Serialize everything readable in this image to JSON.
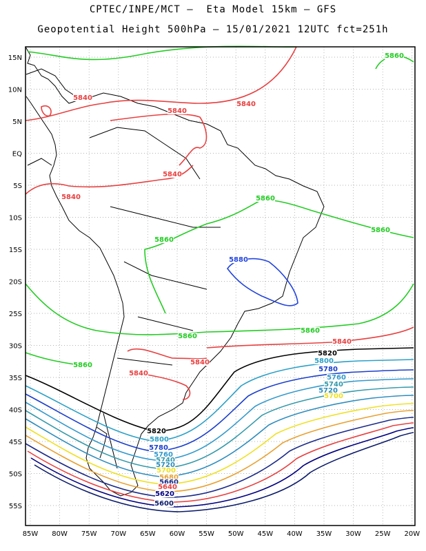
{
  "title": {
    "line1": "CPTEC/INPE/MCT –  Eta Model 15km – GFS",
    "line2": "Geopotential Height 500hPa – 15/01/2021 12UTC fct=251h"
  },
  "axes": {
    "lat_labels": [
      "15N",
      "10N",
      "5N",
      "EQ",
      "5S",
      "10S",
      "15S",
      "20S",
      "25S",
      "30S",
      "35S",
      "40S",
      "45S",
      "50S",
      "55S"
    ],
    "lon_labels": [
      "85W",
      "80W",
      "75W",
      "70W",
      "65W",
      "60W",
      "55W",
      "50W",
      "45W",
      "40W",
      "35W",
      "30W",
      "25W",
      "20W"
    ]
  },
  "chart_data": {
    "type": "contour",
    "variable": "Geopotential Height 500hPa",
    "lon_range": [
      -86,
      -20
    ],
    "lat_range": [
      -59,
      16
    ],
    "grid": true,
    "contour_labels": [
      {
        "value": "5860",
        "color": "#22cc22"
      },
      {
        "value": "5840",
        "color": "#e84040"
      },
      {
        "value": "5840",
        "color": "#e84040"
      },
      {
        "value": "5840",
        "color": "#e84040"
      },
      {
        "value": "5840",
        "color": "#e84040"
      },
      {
        "value": "5840",
        "color": "#e84040"
      },
      {
        "value": "5860",
        "color": "#22cc22"
      },
      {
        "value": "5860",
        "color": "#22cc22"
      },
      {
        "value": "5860",
        "color": "#22cc22"
      },
      {
        "value": "5880",
        "color": "#2244dd"
      },
      {
        "value": "5860",
        "color": "#22cc22"
      },
      {
        "value": "5860",
        "color": "#22cc22"
      },
      {
        "value": "5840",
        "color": "#e84040"
      },
      {
        "value": "5860",
        "color": "#22cc22"
      },
      {
        "value": "5840",
        "color": "#e84040"
      },
      {
        "value": "5840",
        "color": "#e84040"
      },
      {
        "value": "5820",
        "color": "#000000"
      },
      {
        "value": "5800",
        "color": "#2aa0c8"
      },
      {
        "value": "5780",
        "color": "#1a3ecc"
      },
      {
        "value": "5760",
        "color": "#3399cc"
      },
      {
        "value": "5740",
        "color": "#3399aa"
      },
      {
        "value": "5720",
        "color": "#2b8cbe"
      },
      {
        "value": "5700",
        "color": "#f0e020"
      },
      {
        "value": "5820",
        "color": "#000000"
      },
      {
        "value": "5800",
        "color": "#2aa0c8"
      },
      {
        "value": "5780",
        "color": "#1a3ecc"
      },
      {
        "value": "5760",
        "color": "#3399cc"
      },
      {
        "value": "5740",
        "color": "#3399aa"
      },
      {
        "value": "5720",
        "color": "#2b8cbe"
      },
      {
        "value": "5700",
        "color": "#f0e020"
      },
      {
        "value": "5680",
        "color": "#e8a030"
      },
      {
        "value": "5660",
        "color": "#1a2a88"
      },
      {
        "value": "5640",
        "color": "#e84040"
      },
      {
        "value": "5620",
        "color": "#000080"
      },
      {
        "value": "5600",
        "color": "#0a1a6a"
      }
    ]
  }
}
